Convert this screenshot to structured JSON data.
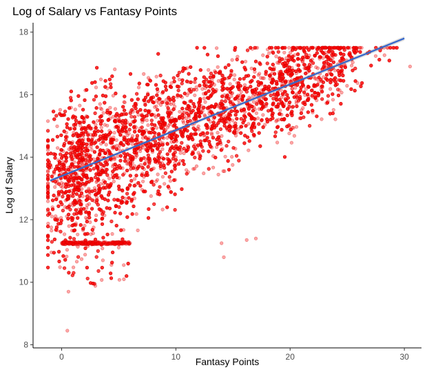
{
  "chart_data": {
    "type": "scatter",
    "title": "Log of Salary vs Fantasy Points",
    "xlabel": "Fantasy Points",
    "ylabel": "Log of Salary",
    "xlim": [
      -2.5,
      31.5
    ],
    "ylim": [
      7.9,
      18.3
    ],
    "x_ticks": [
      "0",
      "10",
      "20",
      "30"
    ],
    "x_tick_values": [
      0,
      10,
      20,
      30
    ],
    "y_ticks": [
      "8",
      "10",
      "12",
      "14",
      "16",
      "18"
    ],
    "y_tick_values": [
      8,
      10,
      12,
      14,
      16,
      18
    ],
    "grid": false,
    "point_color": "#ff0000",
    "point_opacity": 0.35,
    "point_count_approx": 7000,
    "point_cloud_description_params": {
      "x_range": [
        -1.2,
        30.5
      ],
      "y_range": [
        8.4,
        17.5
      ],
      "floor_band_y": 11.25,
      "floor_band_x_range": [
        0,
        6
      ]
    },
    "trend_line": {
      "color": "#3366cc",
      "x": [
        -1,
        30
      ],
      "y": [
        13.25,
        17.8
      ]
    },
    "axis_color": "#000000"
  }
}
